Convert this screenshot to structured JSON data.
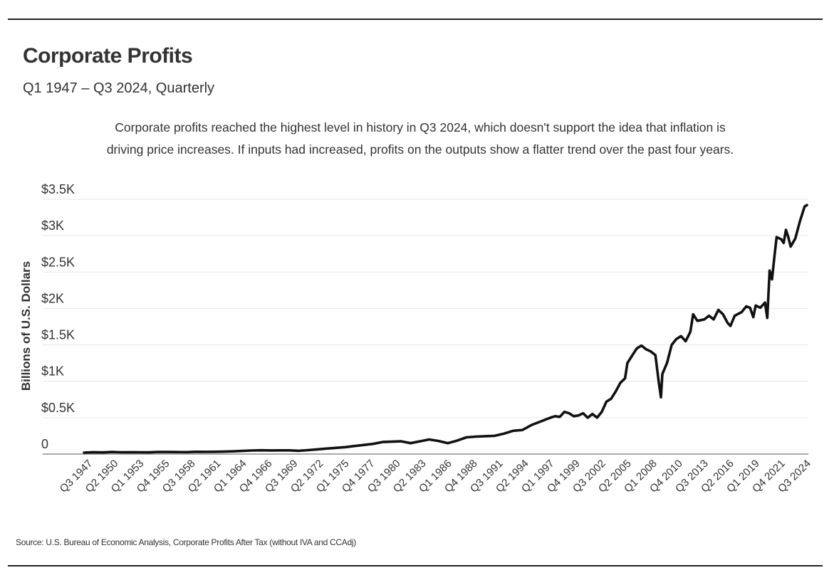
{
  "header": {
    "title": "Corporate Profits",
    "subtitle": "Q1 1947 – Q3 2024, Quarterly",
    "description_line1": "Corporate profits reached the highest level in history in Q3 2024, which doesn't support the idea that inflation is",
    "description_line2": "driving price increases. If inputs had increased, profits on the outputs show a flatter trend over the past four years."
  },
  "footer": {
    "source": "Source: U.S. Bureau of Economic Analysis, Corporate Profits After Tax (without IVA and CCAdj)"
  },
  "chart_data": {
    "type": "line",
    "ylabel": "Billions of U.S. Dollars",
    "ylim": [
      0,
      3500
    ],
    "yticks": [
      {
        "value": 0,
        "label": "0"
      },
      {
        "value": 500,
        "label": "$0.5K"
      },
      {
        "value": 1000,
        "label": "$1K"
      },
      {
        "value": 1500,
        "label": "$1.5K"
      },
      {
        "value": 2000,
        "label": "$2K"
      },
      {
        "value": 2500,
        "label": "$2.5K"
      },
      {
        "value": 3000,
        "label": "$3K"
      },
      {
        "value": 3500,
        "label": "$3.5K"
      }
    ],
    "xlim": [
      1947.0,
      2024.5
    ],
    "xticks": [
      {
        "value": 1947.5,
        "label": "Q3 1947"
      },
      {
        "value": 1950.25,
        "label": "Q2 1950"
      },
      {
        "value": 1953.0,
        "label": "Q1 1953"
      },
      {
        "value": 1955.75,
        "label": "Q4 1955"
      },
      {
        "value": 1958.5,
        "label": "Q3 1958"
      },
      {
        "value": 1961.25,
        "label": "Q2 1961"
      },
      {
        "value": 1964.0,
        "label": "Q1 1964"
      },
      {
        "value": 1966.75,
        "label": "Q4 1966"
      },
      {
        "value": 1969.5,
        "label": "Q3 1969"
      },
      {
        "value": 1972.25,
        "label": "Q2 1972"
      },
      {
        "value": 1975.0,
        "label": "Q1 1975"
      },
      {
        "value": 1977.75,
        "label": "Q4 1977"
      },
      {
        "value": 1980.5,
        "label": "Q3 1980"
      },
      {
        "value": 1983.25,
        "label": "Q2 1983"
      },
      {
        "value": 1986.0,
        "label": "Q1 1986"
      },
      {
        "value": 1988.75,
        "label": "Q4 1988"
      },
      {
        "value": 1991.5,
        "label": "Q3 1991"
      },
      {
        "value": 1994.25,
        "label": "Q2 1994"
      },
      {
        "value": 1997.0,
        "label": "Q1 1997"
      },
      {
        "value": 1999.75,
        "label": "Q4 1999"
      },
      {
        "value": 2002.5,
        "label": "Q3 2002"
      },
      {
        "value": 2005.25,
        "label": "Q2 2005"
      },
      {
        "value": 2008.0,
        "label": "Q1 2008"
      },
      {
        "value": 2010.75,
        "label": "Q4 2010"
      },
      {
        "value": 2013.5,
        "label": "Q3 2013"
      },
      {
        "value": 2016.25,
        "label": "Q2 2016"
      },
      {
        "value": 2019.0,
        "label": "Q1 2019"
      },
      {
        "value": 2021.75,
        "label": "Q4 2021"
      },
      {
        "value": 2024.5,
        "label": "Q3 2024"
      }
    ],
    "grid": true,
    "series": [
      {
        "color": "#111111",
        "points": [
          [
            1947.0,
            20
          ],
          [
            1948.0,
            25
          ],
          [
            1949.0,
            22
          ],
          [
            1950.0,
            28
          ],
          [
            1951.0,
            24
          ],
          [
            1952.0,
            25
          ],
          [
            1953.0,
            24
          ],
          [
            1954.0,
            23
          ],
          [
            1955.0,
            29
          ],
          [
            1956.0,
            28
          ],
          [
            1957.0,
            27
          ],
          [
            1958.0,
            26
          ],
          [
            1959.0,
            31
          ],
          [
            1960.0,
            30
          ],
          [
            1961.0,
            31
          ],
          [
            1962.0,
            33
          ],
          [
            1963.0,
            37
          ],
          [
            1964.0,
            43
          ],
          [
            1965.0,
            49
          ],
          [
            1966.0,
            52
          ],
          [
            1967.0,
            50
          ],
          [
            1968.0,
            51
          ],
          [
            1969.0,
            51
          ],
          [
            1970.0,
            45
          ],
          [
            1971.0,
            54
          ],
          [
            1972.0,
            65
          ],
          [
            1973.0,
            75
          ],
          [
            1974.0,
            85
          ],
          [
            1975.0,
            95
          ],
          [
            1976.0,
            110
          ],
          [
            1977.0,
            125
          ],
          [
            1978.0,
            140
          ],
          [
            1979.0,
            165
          ],
          [
            1980.0,
            170
          ],
          [
            1981.0,
            175
          ],
          [
            1982.0,
            150
          ],
          [
            1983.0,
            175
          ],
          [
            1984.0,
            200
          ],
          [
            1985.0,
            180
          ],
          [
            1986.0,
            150
          ],
          [
            1987.0,
            185
          ],
          [
            1988.0,
            230
          ],
          [
            1989.0,
            240
          ],
          [
            1990.0,
            245
          ],
          [
            1991.0,
            250
          ],
          [
            1992.0,
            280
          ],
          [
            1993.0,
            320
          ],
          [
            1994.0,
            330
          ],
          [
            1995.0,
            400
          ],
          [
            1996.0,
            450
          ],
          [
            1997.0,
            500
          ],
          [
            1997.5,
            520
          ],
          [
            1998.0,
            510
          ],
          [
            1998.5,
            580
          ],
          [
            1999.0,
            560
          ],
          [
            1999.5,
            520
          ],
          [
            2000.0,
            530
          ],
          [
            2000.5,
            560
          ],
          [
            2001.0,
            500
          ],
          [
            2001.5,
            550
          ],
          [
            2002.0,
            500
          ],
          [
            2002.5,
            580
          ],
          [
            2003.0,
            720
          ],
          [
            2003.5,
            760
          ],
          [
            2004.0,
            860
          ],
          [
            2004.5,
            980
          ],
          [
            2005.0,
            1040
          ],
          [
            2005.25,
            1250
          ],
          [
            2005.75,
            1350
          ],
          [
            2006.25,
            1450
          ],
          [
            2006.75,
            1490
          ],
          [
            2007.25,
            1440
          ],
          [
            2007.75,
            1410
          ],
          [
            2008.25,
            1360
          ],
          [
            2008.6,
            1000
          ],
          [
            2008.85,
            780
          ],
          [
            2009.0,
            1100
          ],
          [
            2009.5,
            1250
          ],
          [
            2010.0,
            1500
          ],
          [
            2010.5,
            1580
          ],
          [
            2011.0,
            1620
          ],
          [
            2011.5,
            1550
          ],
          [
            2012.0,
            1680
          ],
          [
            2012.3,
            1920
          ],
          [
            2012.75,
            1830
          ],
          [
            2013.5,
            1850
          ],
          [
            2014.0,
            1900
          ],
          [
            2014.5,
            1850
          ],
          [
            2015.0,
            1980
          ],
          [
            2015.5,
            1920
          ],
          [
            2016.0,
            1800
          ],
          [
            2016.3,
            1760
          ],
          [
            2016.75,
            1900
          ],
          [
            2017.5,
            1950
          ],
          [
            2018.0,
            2030
          ],
          [
            2018.4,
            2010
          ],
          [
            2018.75,
            1880
          ],
          [
            2019.0,
            2040
          ],
          [
            2019.5,
            2010
          ],
          [
            2020.0,
            2080
          ],
          [
            2020.25,
            1870
          ],
          [
            2020.5,
            2520
          ],
          [
            2020.75,
            2400
          ],
          [
            2021.0,
            2700
          ],
          [
            2021.25,
            2980
          ],
          [
            2021.75,
            2950
          ],
          [
            2022.0,
            2900
          ],
          [
            2022.25,
            3080
          ],
          [
            2022.5,
            2980
          ],
          [
            2022.75,
            2850
          ],
          [
            2023.25,
            2960
          ],
          [
            2023.75,
            3200
          ],
          [
            2024.25,
            3400
          ],
          [
            2024.5,
            3420
          ]
        ]
      }
    ]
  }
}
